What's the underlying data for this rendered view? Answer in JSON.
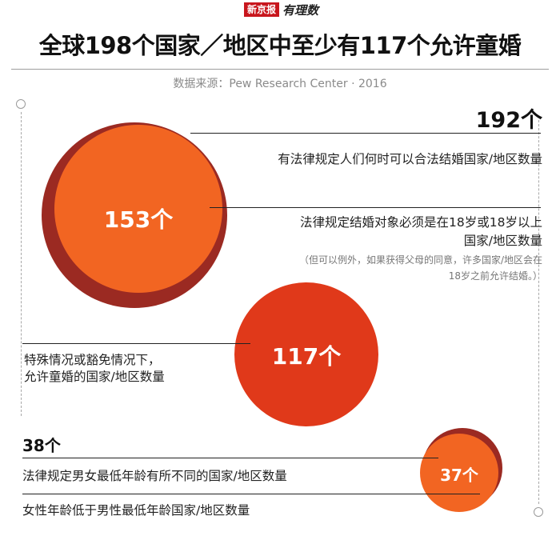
{
  "brand": {
    "name": "新京报",
    "column": "有理数"
  },
  "title": "全球198个国家／地区中至少有117个允许童婚",
  "source": "数据来源：Pew Research Center · 2016",
  "chart_data": {
    "type": "bubble",
    "items": [
      {
        "value": 192,
        "label": "192个",
        "desc": "有法律规定人们何时可以合法结婚国家/地区数量",
        "color": "#9b2a22"
      },
      {
        "value": 153,
        "label": "153个",
        "desc": "法律规定结婚对象必须是在18岁或18岁以上",
        "desc2": "国家/地区数量",
        "note": "（但可以例外，如果获得父母的同意，许多国家/地区会在",
        "note2": "18岁之前允许结婚。）",
        "color": "#f26522"
      },
      {
        "value": 117,
        "label": "117个",
        "desc": "特殊情况或豁免情况下，",
        "desc2": "允许童婚的国家/地区数量",
        "color": "#e0391a"
      },
      {
        "value": 38,
        "label": "38个",
        "desc": "法律规定男女最低年龄有所不同的国家/地区数量",
        "color": "#9b2a22"
      },
      {
        "value": 37,
        "label": "37个",
        "desc": "女性年龄低于男性最低年龄国家/地区数量",
        "color": "#f26522"
      }
    ]
  }
}
